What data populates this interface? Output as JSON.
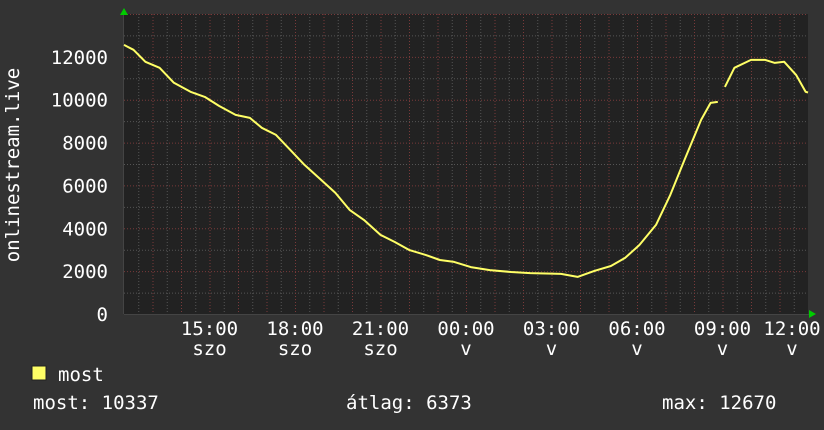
{
  "chart_data": {
    "type": "line",
    "title": "",
    "ylabel": "onlinestream.live",
    "xlabel": "",
    "ylim": [
      0,
      14000
    ],
    "y_ticks": [
      "0",
      "2000",
      "4000",
      "6000",
      "8000",
      "10000",
      "12000"
    ],
    "x_tick_labels": [
      {
        "day": "szo",
        "time": "15:00"
      },
      {
        "day": "szo",
        "time": "18:00"
      },
      {
        "day": "szo",
        "time": "21:00"
      },
      {
        "day": "v",
        "time": "00:00"
      },
      {
        "day": "v",
        "time": "03:00"
      },
      {
        "day": "v",
        "time": "06:00"
      },
      {
        "day": "v",
        "time": "09:00"
      },
      {
        "day": "v",
        "time": "12:00"
      }
    ],
    "xlim": [
      "szo 12:00",
      "v 12:00"
    ],
    "grid": true,
    "legend_placement": "bottom-left",
    "colors": {
      "background": "#333333",
      "plot": "#222222",
      "line": "#ffff66",
      "grid_minor": "#555555",
      "grid_major": "#7a3a3a",
      "arrow": "#00cc00"
    },
    "series": [
      {
        "name": "most",
        "color": "#ffff66",
        "points": [
          [
            "szo 12:00",
            12560
          ],
          [
            "szo 12:20",
            12330
          ],
          [
            "szo 12:45",
            11770
          ],
          [
            "szo 13:15",
            11490
          ],
          [
            "szo 13:45",
            10790
          ],
          [
            "szo 14:20",
            10370
          ],
          [
            "szo 14:50",
            10130
          ],
          [
            "szo 15:20",
            9710
          ],
          [
            "szo 15:55",
            9290
          ],
          [
            "szo 16:25",
            9150
          ],
          [
            "szo 16:50",
            8690
          ],
          [
            "szo 17:20",
            8360
          ],
          [
            "szo 17:50",
            7660
          ],
          [
            "szo 18:20",
            6960
          ],
          [
            "szo 18:55",
            6260
          ],
          [
            "szo 19:25",
            5650
          ],
          [
            "szo 19:55",
            4860
          ],
          [
            "szo 20:25",
            4390
          ],
          [
            "szo 21:00",
            3690
          ],
          [
            "szo 21:30",
            3360
          ],
          [
            "szo 22:00",
            2990
          ],
          [
            "szo 22:35",
            2760
          ],
          [
            "szo 23:05",
            2520
          ],
          [
            "szo 23:35",
            2430
          ],
          [
            "v 00:10",
            2190
          ],
          [
            "v 00:50",
            2050
          ],
          [
            "v 01:35",
            1960
          ],
          [
            "v 02:15",
            1910
          ],
          [
            "v 03:20",
            1870
          ],
          [
            "v 03:55",
            1730
          ],
          [
            "v 04:30",
            2010
          ],
          [
            "v 05:05",
            2240
          ],
          [
            "v 05:35",
            2620
          ],
          [
            "v 06:05",
            3220
          ],
          [
            "v 06:40",
            4160
          ],
          [
            "v 07:10",
            5560
          ],
          [
            "v 07:40",
            7190
          ],
          [
            "v 08:15",
            9060
          ],
          [
            "v 08:35",
            9850
          ],
          [
            "v 08:50",
            9900
          ],
          [
            "v 09:00",
            null
          ],
          [
            "v 09:05",
            10600
          ],
          [
            "v 09:25",
            11490
          ],
          [
            "v 10:00",
            11860
          ],
          [
            "v 10:30",
            11860
          ],
          [
            "v 10:50",
            11720
          ],
          [
            "v 11:10",
            11770
          ],
          [
            "v 11:35",
            11160
          ],
          [
            "v 11:55",
            10370
          ],
          [
            "v 12:00",
            10337
          ]
        ]
      }
    ]
  },
  "legend": {
    "label": "most",
    "color": "#ffff66"
  },
  "stats": {
    "current": "most: 10337",
    "average": "átlag: 6373",
    "max": "max: 12670"
  }
}
